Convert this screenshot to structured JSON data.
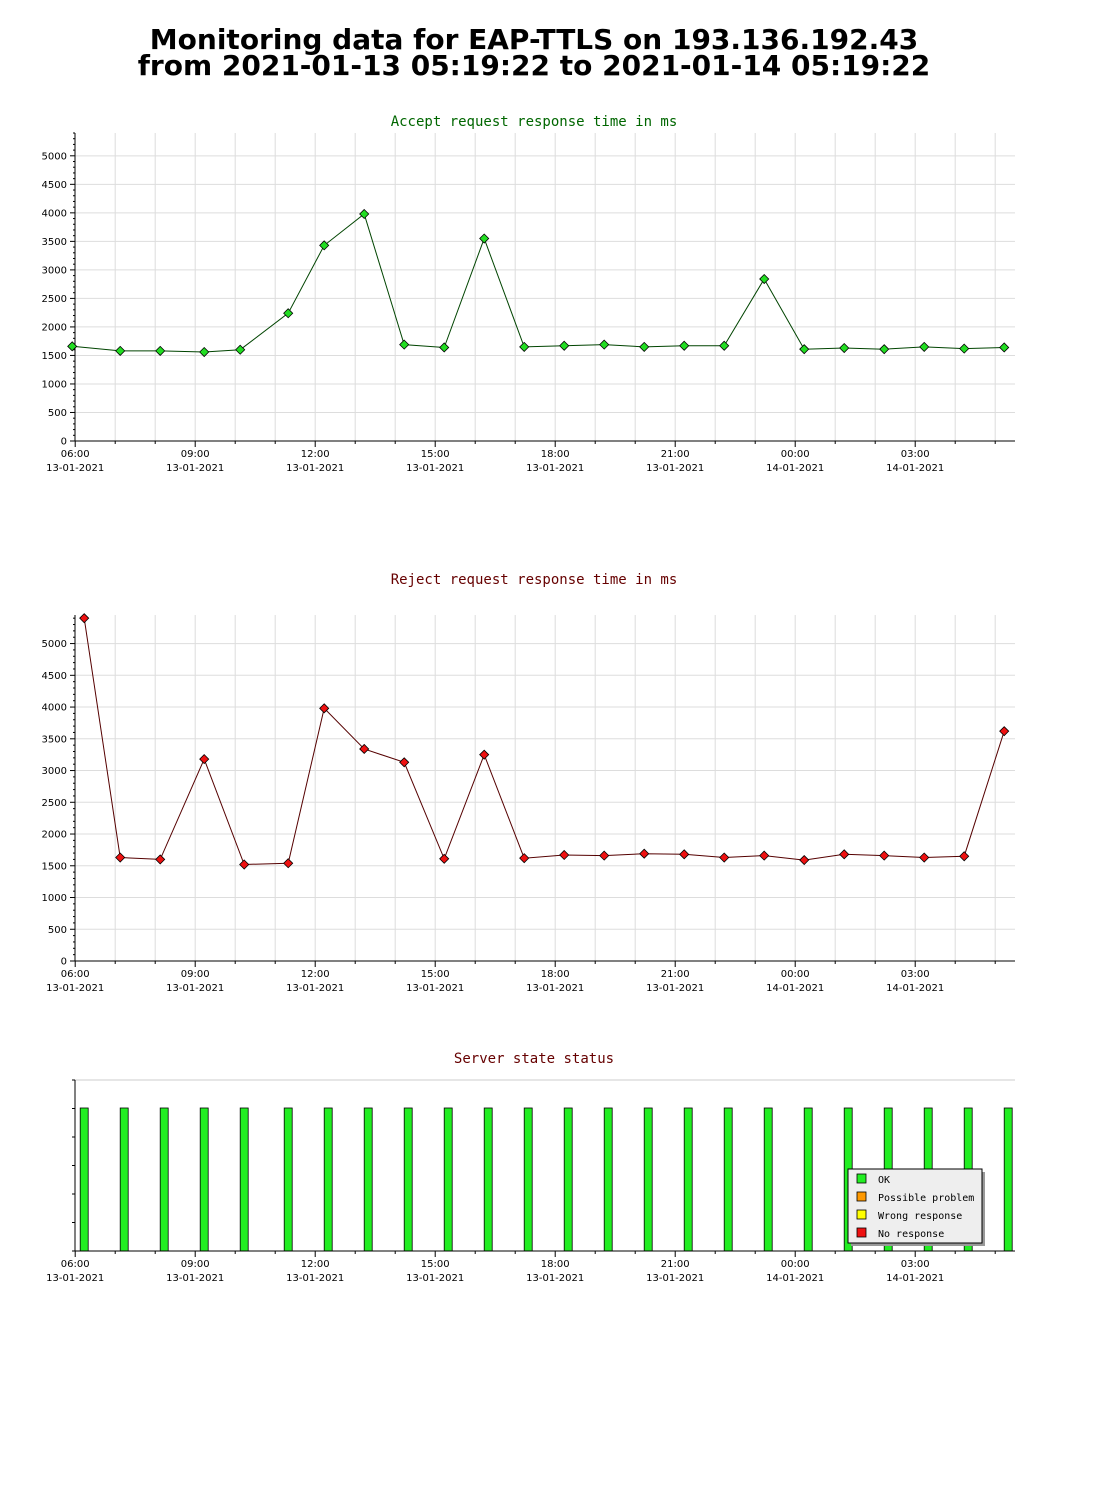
{
  "page": {
    "title_line1": "Monitoring data for EAP-TTLS on 193.136.192.43",
    "title_line2": "from 2021-01-13 05:19:22 to 2021-01-14 05:19:22"
  },
  "colors": {
    "accept_line": "#004400",
    "accept_marker": "#22dd22",
    "accept_title": "#006600",
    "reject_line": "#550000",
    "reject_marker": "#ee1111",
    "reject_title": "#660000",
    "status_title": "#660000",
    "ok": "#22ee22",
    "possible_problem": "#ff9900",
    "wrong_response": "#ffff00",
    "no_response": "#ee1111",
    "grid": "#dddddd"
  },
  "chart_data": [
    {
      "type": "line",
      "title": "Accept request response time in ms",
      "x_unit": "hours since 2021-01-13 06:00",
      "x": [
        -0.1,
        1.1,
        2.1,
        3.2,
        4.1,
        5.3,
        6.2,
        7.2,
        8.2,
        9.2,
        10.2,
        11.2,
        12.2,
        13.2,
        14.2,
        15.2,
        16.2,
        17.2,
        18.2,
        19.2,
        20.2,
        21.2,
        22.2,
        23.2
      ],
      "values": [
        1660,
        1580,
        1580,
        1560,
        1600,
        2240,
        3430,
        3980,
        1690,
        1640,
        3550,
        1650,
        1670,
        1690,
        1650,
        1670,
        1670,
        2840,
        1610,
        1630,
        1610,
        1650,
        1620,
        1640
      ],
      "ylim": [
        0,
        5400
      ],
      "yticks": [
        0,
        500,
        1000,
        1500,
        2000,
        2500,
        3000,
        3500,
        4000,
        4500,
        5000
      ],
      "xlabel": "",
      "ylabel": "",
      "xticks": [
        {
          "time": "06:00",
          "date": "13-01-2021"
        },
        {
          "time": "09:00",
          "date": "13-01-2021"
        },
        {
          "time": "12:00",
          "date": "13-01-2021"
        },
        {
          "time": "15:00",
          "date": "13-01-2021"
        },
        {
          "time": "18:00",
          "date": "13-01-2021"
        },
        {
          "time": "21:00",
          "date": "13-01-2021"
        },
        {
          "time": "00:00",
          "date": "14-01-2021"
        },
        {
          "time": "03:00",
          "date": "14-01-2021"
        }
      ],
      "grid": true
    },
    {
      "type": "line",
      "title": "Reject request response time in ms",
      "x_unit": "hours since 2021-01-13 06:00",
      "x": [
        0.2,
        1.1,
        2.1,
        3.2,
        4.2,
        5.3,
        6.2,
        7.2,
        8.2,
        9.2,
        10.2,
        11.2,
        12.2,
        13.2,
        14.2,
        15.2,
        16.2,
        17.2,
        18.2,
        19.2,
        20.2,
        21.2,
        22.2,
        23.2
      ],
      "values": [
        5400,
        1630,
        1600,
        3180,
        1520,
        1540,
        3980,
        3340,
        3130,
        1610,
        3250,
        1620,
        1670,
        1660,
        1690,
        1680,
        1630,
        1660,
        1590,
        1680,
        1660,
        1630,
        1650,
        3620
      ],
      "ylim": [
        0,
        5450
      ],
      "yticks": [
        0,
        500,
        1000,
        1500,
        2000,
        2500,
        3000,
        3500,
        4000,
        4500,
        5000
      ],
      "xlabel": "",
      "ylabel": "",
      "xticks": [
        {
          "time": "06:00",
          "date": "13-01-2021"
        },
        {
          "time": "09:00",
          "date": "13-01-2021"
        },
        {
          "time": "12:00",
          "date": "13-01-2021"
        },
        {
          "time": "15:00",
          "date": "13-01-2021"
        },
        {
          "time": "18:00",
          "date": "13-01-2021"
        },
        {
          "time": "21:00",
          "date": "13-01-2021"
        },
        {
          "time": "00:00",
          "date": "14-01-2021"
        },
        {
          "time": "03:00",
          "date": "14-01-2021"
        }
      ],
      "grid": true
    },
    {
      "type": "bar",
      "title": "Server state status",
      "x_unit": "hours since 2021-01-13 06:00",
      "x": [
        0.2,
        1.2,
        2.2,
        3.2,
        4.2,
        5.3,
        6.3,
        7.3,
        8.3,
        9.3,
        10.3,
        11.3,
        12.3,
        13.3,
        14.3,
        15.3,
        16.3,
        17.3,
        18.3,
        19.3,
        20.3,
        21.3,
        22.3,
        23.3
      ],
      "states": [
        "OK",
        "OK",
        "OK",
        "OK",
        "OK",
        "OK",
        "OK",
        "OK",
        "OK",
        "OK",
        "OK",
        "OK",
        "OK",
        "OK",
        "OK",
        "OK",
        "OK",
        "OK",
        "OK",
        "OK",
        "OK",
        "OK",
        "OK",
        "OK"
      ],
      "legend": [
        {
          "label": "OK",
          "color_key": "ok"
        },
        {
          "label": "Possible problem",
          "color_key": "possible_problem"
        },
        {
          "label": "Wrong response",
          "color_key": "wrong_response"
        },
        {
          "label": "No response",
          "color_key": "no_response"
        }
      ],
      "legend_placement": "bottom-right",
      "xticks": [
        {
          "time": "06:00",
          "date": "13-01-2021"
        },
        {
          "time": "09:00",
          "date": "13-01-2021"
        },
        {
          "time": "12:00",
          "date": "13-01-2021"
        },
        {
          "time": "15:00",
          "date": "13-01-2021"
        },
        {
          "time": "18:00",
          "date": "13-01-2021"
        },
        {
          "time": "21:00",
          "date": "13-01-2021"
        },
        {
          "time": "00:00",
          "date": "14-01-2021"
        },
        {
          "time": "03:00",
          "date": "14-01-2021"
        }
      ]
    }
  ]
}
